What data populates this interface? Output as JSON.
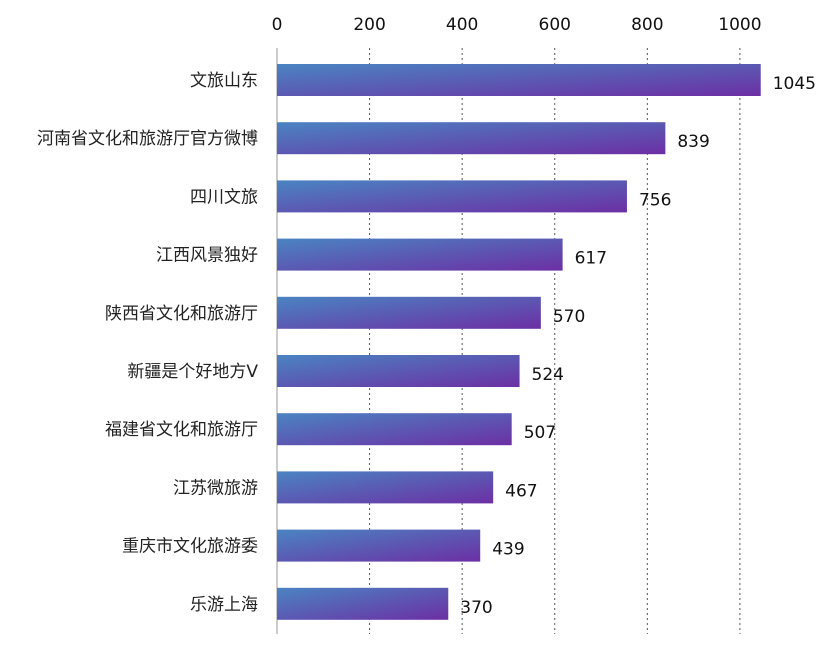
{
  "chart_data": {
    "type": "bar",
    "orientation": "horizontal",
    "categories": [
      "文旅山东",
      "河南省文化和旅游厅官方微博",
      "四川文旅",
      "江西风景独好",
      "陕西省文化和旅游厅",
      "新疆是个好地方V",
      "福建省文化和旅游厅",
      "江苏微旅游",
      "重庆市文化旅游委",
      "乐游上海"
    ],
    "values": [
      1045,
      839,
      756,
      617,
      570,
      524,
      507,
      467,
      439,
      370
    ],
    "xticks": [
      0,
      200,
      400,
      600,
      800,
      1000
    ],
    "xlim": [
      0,
      1100
    ],
    "xaxis_position": "top",
    "grid": "vertical dotted",
    "legend": "none",
    "title": "",
    "xlabel": "",
    "ylabel": "",
    "colors": {
      "bar_start": "#4a84c2",
      "bar_end": "#6c2fa4"
    }
  }
}
